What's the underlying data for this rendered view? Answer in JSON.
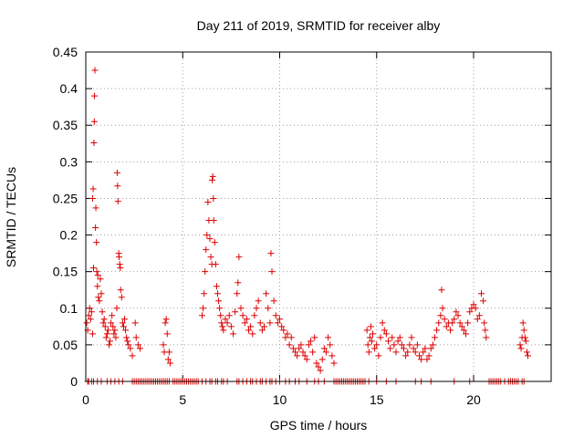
{
  "chart_data": {
    "type": "scatter",
    "title": "Day 211 of 2019, SRMTID for receiver alby",
    "xlabel": "GPS time / hours",
    "ylabel": "SRMTID / TECUs",
    "xlim": [
      0,
      24
    ],
    "ylim": [
      0,
      0.45
    ],
    "x_ticks": [
      0,
      5,
      10,
      15,
      20
    ],
    "y_ticks": [
      0,
      0.05,
      0.1,
      0.15,
      0.2,
      0.25,
      0.3,
      0.35,
      0.4,
      0.45
    ],
    "x_tick_labels": [
      "0",
      "5",
      "10",
      "15",
      "20"
    ],
    "y_tick_labels": [
      "0",
      "0.05",
      "0.1",
      "0.15",
      "0.2",
      "0.25",
      "0.3",
      "0.35",
      "0.4",
      "0.45"
    ],
    "grid": true,
    "marker": "+",
    "marker_color": "#dd0000",
    "series": [
      {
        "name": "SRMTID",
        "points": [
          [
            0.05,
            0.08
          ],
          [
            0.1,
            0.07
          ],
          [
            0.15,
            0.09
          ],
          [
            0.2,
            0.1
          ],
          [
            0.25,
            0.085
          ],
          [
            0.3,
            0.095
          ],
          [
            0.35,
            0.065
          ],
          [
            0.35,
            0.25
          ],
          [
            0.38,
            0.263
          ],
          [
            0.4,
            0.155
          ],
          [
            0.42,
            0.326
          ],
          [
            0.44,
            0.355
          ],
          [
            0.45,
            0.39
          ],
          [
            0.47,
            0.425
          ],
          [
            0.5,
            0.21
          ],
          [
            0.52,
            0.237
          ],
          [
            0.55,
            0.19
          ],
          [
            0.57,
            0.15
          ],
          [
            0.6,
            0.13
          ],
          [
            0.62,
            0.145
          ],
          [
            0.65,
            0.115
          ],
          [
            0.7,
            0.11
          ],
          [
            0.75,
            0.14
          ],
          [
            0.8,
            0.12
          ],
          [
            0.85,
            0.095
          ],
          [
            0.9,
            0.08
          ],
          [
            0.95,
            0.085
          ],
          [
            1.0,
            0.075
          ],
          [
            1.05,
            0.06
          ],
          [
            1.1,
            0.065
          ],
          [
            1.15,
            0.07
          ],
          [
            1.2,
            0.05
          ],
          [
            1.25,
            0.055
          ],
          [
            1.3,
            0.08
          ],
          [
            1.35,
            0.09
          ],
          [
            1.4,
            0.075
          ],
          [
            1.45,
            0.065
          ],
          [
            1.5,
            0.07
          ],
          [
            1.55,
            0.06
          ],
          [
            1.6,
            0.1
          ],
          [
            1.62,
            0.285
          ],
          [
            1.64,
            0.267
          ],
          [
            1.66,
            0.246
          ],
          [
            1.7,
            0.175
          ],
          [
            1.72,
            0.17
          ],
          [
            1.75,
            0.16
          ],
          [
            1.78,
            0.155
          ],
          [
            1.8,
            0.125
          ],
          [
            1.85,
            0.115
          ],
          [
            1.9,
            0.08
          ],
          [
            1.95,
            0.075
          ],
          [
            2.0,
            0.085
          ],
          [
            2.05,
            0.07
          ],
          [
            2.1,
            0.06
          ],
          [
            2.15,
            0.055
          ],
          [
            2.2,
            0.05
          ],
          [
            2.3,
            0.045
          ],
          [
            2.4,
            0.035
          ],
          [
            2.55,
            0.08
          ],
          [
            2.6,
            0.06
          ],
          [
            2.7,
            0.05
          ],
          [
            2.8,
            0.045
          ],
          [
            4.0,
            0.05
          ],
          [
            4.05,
            0.04
          ],
          [
            4.1,
            0.08
          ],
          [
            4.15,
            0.085
          ],
          [
            4.2,
            0.065
          ],
          [
            4.25,
            0.03
          ],
          [
            4.3,
            0.04
          ],
          [
            4.35,
            0.025
          ],
          [
            6.0,
            0.09
          ],
          [
            6.05,
            0.1
          ],
          [
            6.1,
            0.12
          ],
          [
            6.15,
            0.15
          ],
          [
            6.2,
            0.18
          ],
          [
            6.25,
            0.2
          ],
          [
            6.3,
            0.245
          ],
          [
            6.35,
            0.22
          ],
          [
            6.4,
            0.195
          ],
          [
            6.45,
            0.17
          ],
          [
            6.5,
            0.16
          ],
          [
            6.52,
            0.275
          ],
          [
            6.55,
            0.28
          ],
          [
            6.58,
            0.25
          ],
          [
            6.6,
            0.22
          ],
          [
            6.65,
            0.19
          ],
          [
            6.7,
            0.16
          ],
          [
            6.75,
            0.13
          ],
          [
            6.8,
            0.12
          ],
          [
            6.85,
            0.11
          ],
          [
            6.9,
            0.1
          ],
          [
            6.95,
            0.09
          ],
          [
            7.0,
            0.08
          ],
          [
            7.05,
            0.075
          ],
          [
            7.1,
            0.07
          ],
          [
            7.2,
            0.085
          ],
          [
            7.3,
            0.08
          ],
          [
            7.4,
            0.09
          ],
          [
            7.5,
            0.075
          ],
          [
            7.6,
            0.065
          ],
          [
            7.7,
            0.095
          ],
          [
            7.8,
            0.12
          ],
          [
            7.85,
            0.135
          ],
          [
            7.9,
            0.17
          ],
          [
            8.0,
            0.1
          ],
          [
            8.1,
            0.09
          ],
          [
            8.2,
            0.08
          ],
          [
            8.3,
            0.085
          ],
          [
            8.4,
            0.07
          ],
          [
            8.5,
            0.075
          ],
          [
            8.6,
            0.065
          ],
          [
            8.7,
            0.09
          ],
          [
            8.8,
            0.1
          ],
          [
            8.9,
            0.11
          ],
          [
            9.0,
            0.08
          ],
          [
            9.1,
            0.07
          ],
          [
            9.2,
            0.075
          ],
          [
            9.3,
            0.12
          ],
          [
            9.4,
            0.1
          ],
          [
            9.5,
            0.08
          ],
          [
            9.55,
            0.175
          ],
          [
            9.6,
            0.15
          ],
          [
            9.7,
            0.11
          ],
          [
            9.8,
            0.09
          ],
          [
            9.9,
            0.08
          ],
          [
            10.0,
            0.085
          ],
          [
            10.1,
            0.075
          ],
          [
            10.2,
            0.07
          ],
          [
            10.3,
            0.06
          ],
          [
            10.4,
            0.065
          ],
          [
            10.5,
            0.05
          ],
          [
            10.6,
            0.06
          ],
          [
            10.7,
            0.045
          ],
          [
            10.8,
            0.04
          ],
          [
            10.9,
            0.035
          ],
          [
            11.0,
            0.045
          ],
          [
            11.1,
            0.05
          ],
          [
            11.2,
            0.04
          ],
          [
            11.3,
            0.035
          ],
          [
            11.4,
            0.03
          ],
          [
            11.5,
            0.05
          ],
          [
            11.6,
            0.055
          ],
          [
            11.7,
            0.04
          ],
          [
            11.8,
            0.06
          ],
          [
            11.9,
            0.025
          ],
          [
            12.0,
            0.02
          ],
          [
            12.1,
            0.015
          ],
          [
            12.2,
            0.03
          ],
          [
            12.3,
            0.045
          ],
          [
            12.4,
            0.04
          ],
          [
            12.5,
            0.06
          ],
          [
            12.6,
            0.05
          ],
          [
            12.7,
            0.035
          ],
          [
            12.8,
            0.025
          ],
          [
            14.5,
            0.07
          ],
          [
            14.55,
            0.05
          ],
          [
            14.6,
            0.04
          ],
          [
            14.65,
            0.06
          ],
          [
            14.7,
            0.075
          ],
          [
            14.75,
            0.055
          ],
          [
            14.8,
            0.065
          ],
          [
            14.9,
            0.045
          ],
          [
            15.0,
            0.05
          ],
          [
            15.1,
            0.035
          ],
          [
            15.2,
            0.06
          ],
          [
            15.3,
            0.08
          ],
          [
            15.4,
            0.07
          ],
          [
            15.5,
            0.065
          ],
          [
            15.6,
            0.055
          ],
          [
            15.7,
            0.045
          ],
          [
            15.8,
            0.06
          ],
          [
            15.9,
            0.05
          ],
          [
            16.0,
            0.04
          ],
          [
            16.1,
            0.055
          ],
          [
            16.2,
            0.06
          ],
          [
            16.3,
            0.05
          ],
          [
            16.4,
            0.045
          ],
          [
            16.5,
            0.035
          ],
          [
            16.6,
            0.04
          ],
          [
            16.7,
            0.05
          ],
          [
            16.8,
            0.06
          ],
          [
            16.9,
            0.045
          ],
          [
            17.0,
            0.04
          ],
          [
            17.1,
            0.05
          ],
          [
            17.2,
            0.035
          ],
          [
            17.3,
            0.03
          ],
          [
            17.4,
            0.04
          ],
          [
            17.5,
            0.045
          ],
          [
            17.6,
            0.03
          ],
          [
            17.7,
            0.035
          ],
          [
            17.8,
            0.045
          ],
          [
            17.9,
            0.05
          ],
          [
            18.0,
            0.06
          ],
          [
            18.1,
            0.07
          ],
          [
            18.2,
            0.08
          ],
          [
            18.3,
            0.09
          ],
          [
            18.35,
            0.125
          ],
          [
            18.4,
            0.1
          ],
          [
            18.5,
            0.085
          ],
          [
            18.6,
            0.075
          ],
          [
            18.7,
            0.08
          ],
          [
            18.8,
            0.07
          ],
          [
            18.9,
            0.08
          ],
          [
            19.0,
            0.085
          ],
          [
            19.1,
            0.095
          ],
          [
            19.2,
            0.09
          ],
          [
            19.3,
            0.08
          ],
          [
            19.4,
            0.075
          ],
          [
            19.5,
            0.07
          ],
          [
            19.6,
            0.065
          ],
          [
            19.7,
            0.08
          ],
          [
            19.8,
            0.095
          ],
          [
            19.9,
            0.1
          ],
          [
            20.0,
            0.105
          ],
          [
            20.1,
            0.1
          ],
          [
            20.2,
            0.085
          ],
          [
            20.3,
            0.09
          ],
          [
            20.4,
            0.12
          ],
          [
            20.5,
            0.11
          ],
          [
            20.55,
            0.08
          ],
          [
            20.6,
            0.07
          ],
          [
            20.65,
            0.06
          ],
          [
            22.4,
            0.05
          ],
          [
            22.45,
            0.045
          ],
          [
            22.5,
            0.06
          ],
          [
            22.55,
            0.08
          ],
          [
            22.6,
            0.07
          ],
          [
            22.65,
            0.06
          ],
          [
            22.7,
            0.055
          ],
          [
            22.75,
            0.04
          ],
          [
            22.8,
            0.035
          ]
        ],
        "zero_points": [
          0.1,
          0.15,
          0.3,
          0.4,
          0.6,
          0.8,
          1.1,
          1.3,
          1.5,
          1.7,
          1.9,
          2.4,
          2.5,
          2.6,
          2.7,
          2.8,
          2.9,
          3.0,
          3.1,
          3.2,
          3.3,
          3.4,
          3.5,
          3.6,
          3.7,
          3.8,
          3.9,
          4.0,
          4.1,
          4.2,
          4.3,
          4.5,
          4.6,
          4.7,
          4.8,
          4.9,
          5.0,
          5.1,
          5.2,
          5.3,
          5.4,
          5.5,
          5.6,
          5.7,
          5.8,
          6.0,
          6.2,
          6.4,
          6.5,
          6.7,
          6.8,
          7.0,
          7.1,
          7.3,
          7.8,
          7.9,
          8.1,
          8.3,
          8.5,
          8.6,
          8.8,
          9.0,
          9.1,
          9.3,
          9.5,
          9.6,
          9.8,
          10.0,
          10.3,
          10.5,
          10.8,
          11.0,
          11.4,
          11.8,
          12.0,
          12.3,
          12.8,
          12.9,
          13.0,
          13.1,
          13.2,
          13.3,
          13.4,
          13.5,
          13.6,
          13.7,
          13.8,
          13.9,
          14.0,
          14.1,
          14.2,
          14.3,
          14.4,
          14.6,
          15.0,
          15.5,
          16.0,
          17.0,
          17.3,
          17.8,
          19.0,
          19.8,
          20.8,
          20.9,
          21.0,
          21.1,
          21.2,
          21.3,
          21.4,
          21.6,
          21.8,
          21.9,
          22.0,
          22.1,
          22.2,
          22.3,
          22.5,
          22.6
        ]
      }
    ]
  }
}
